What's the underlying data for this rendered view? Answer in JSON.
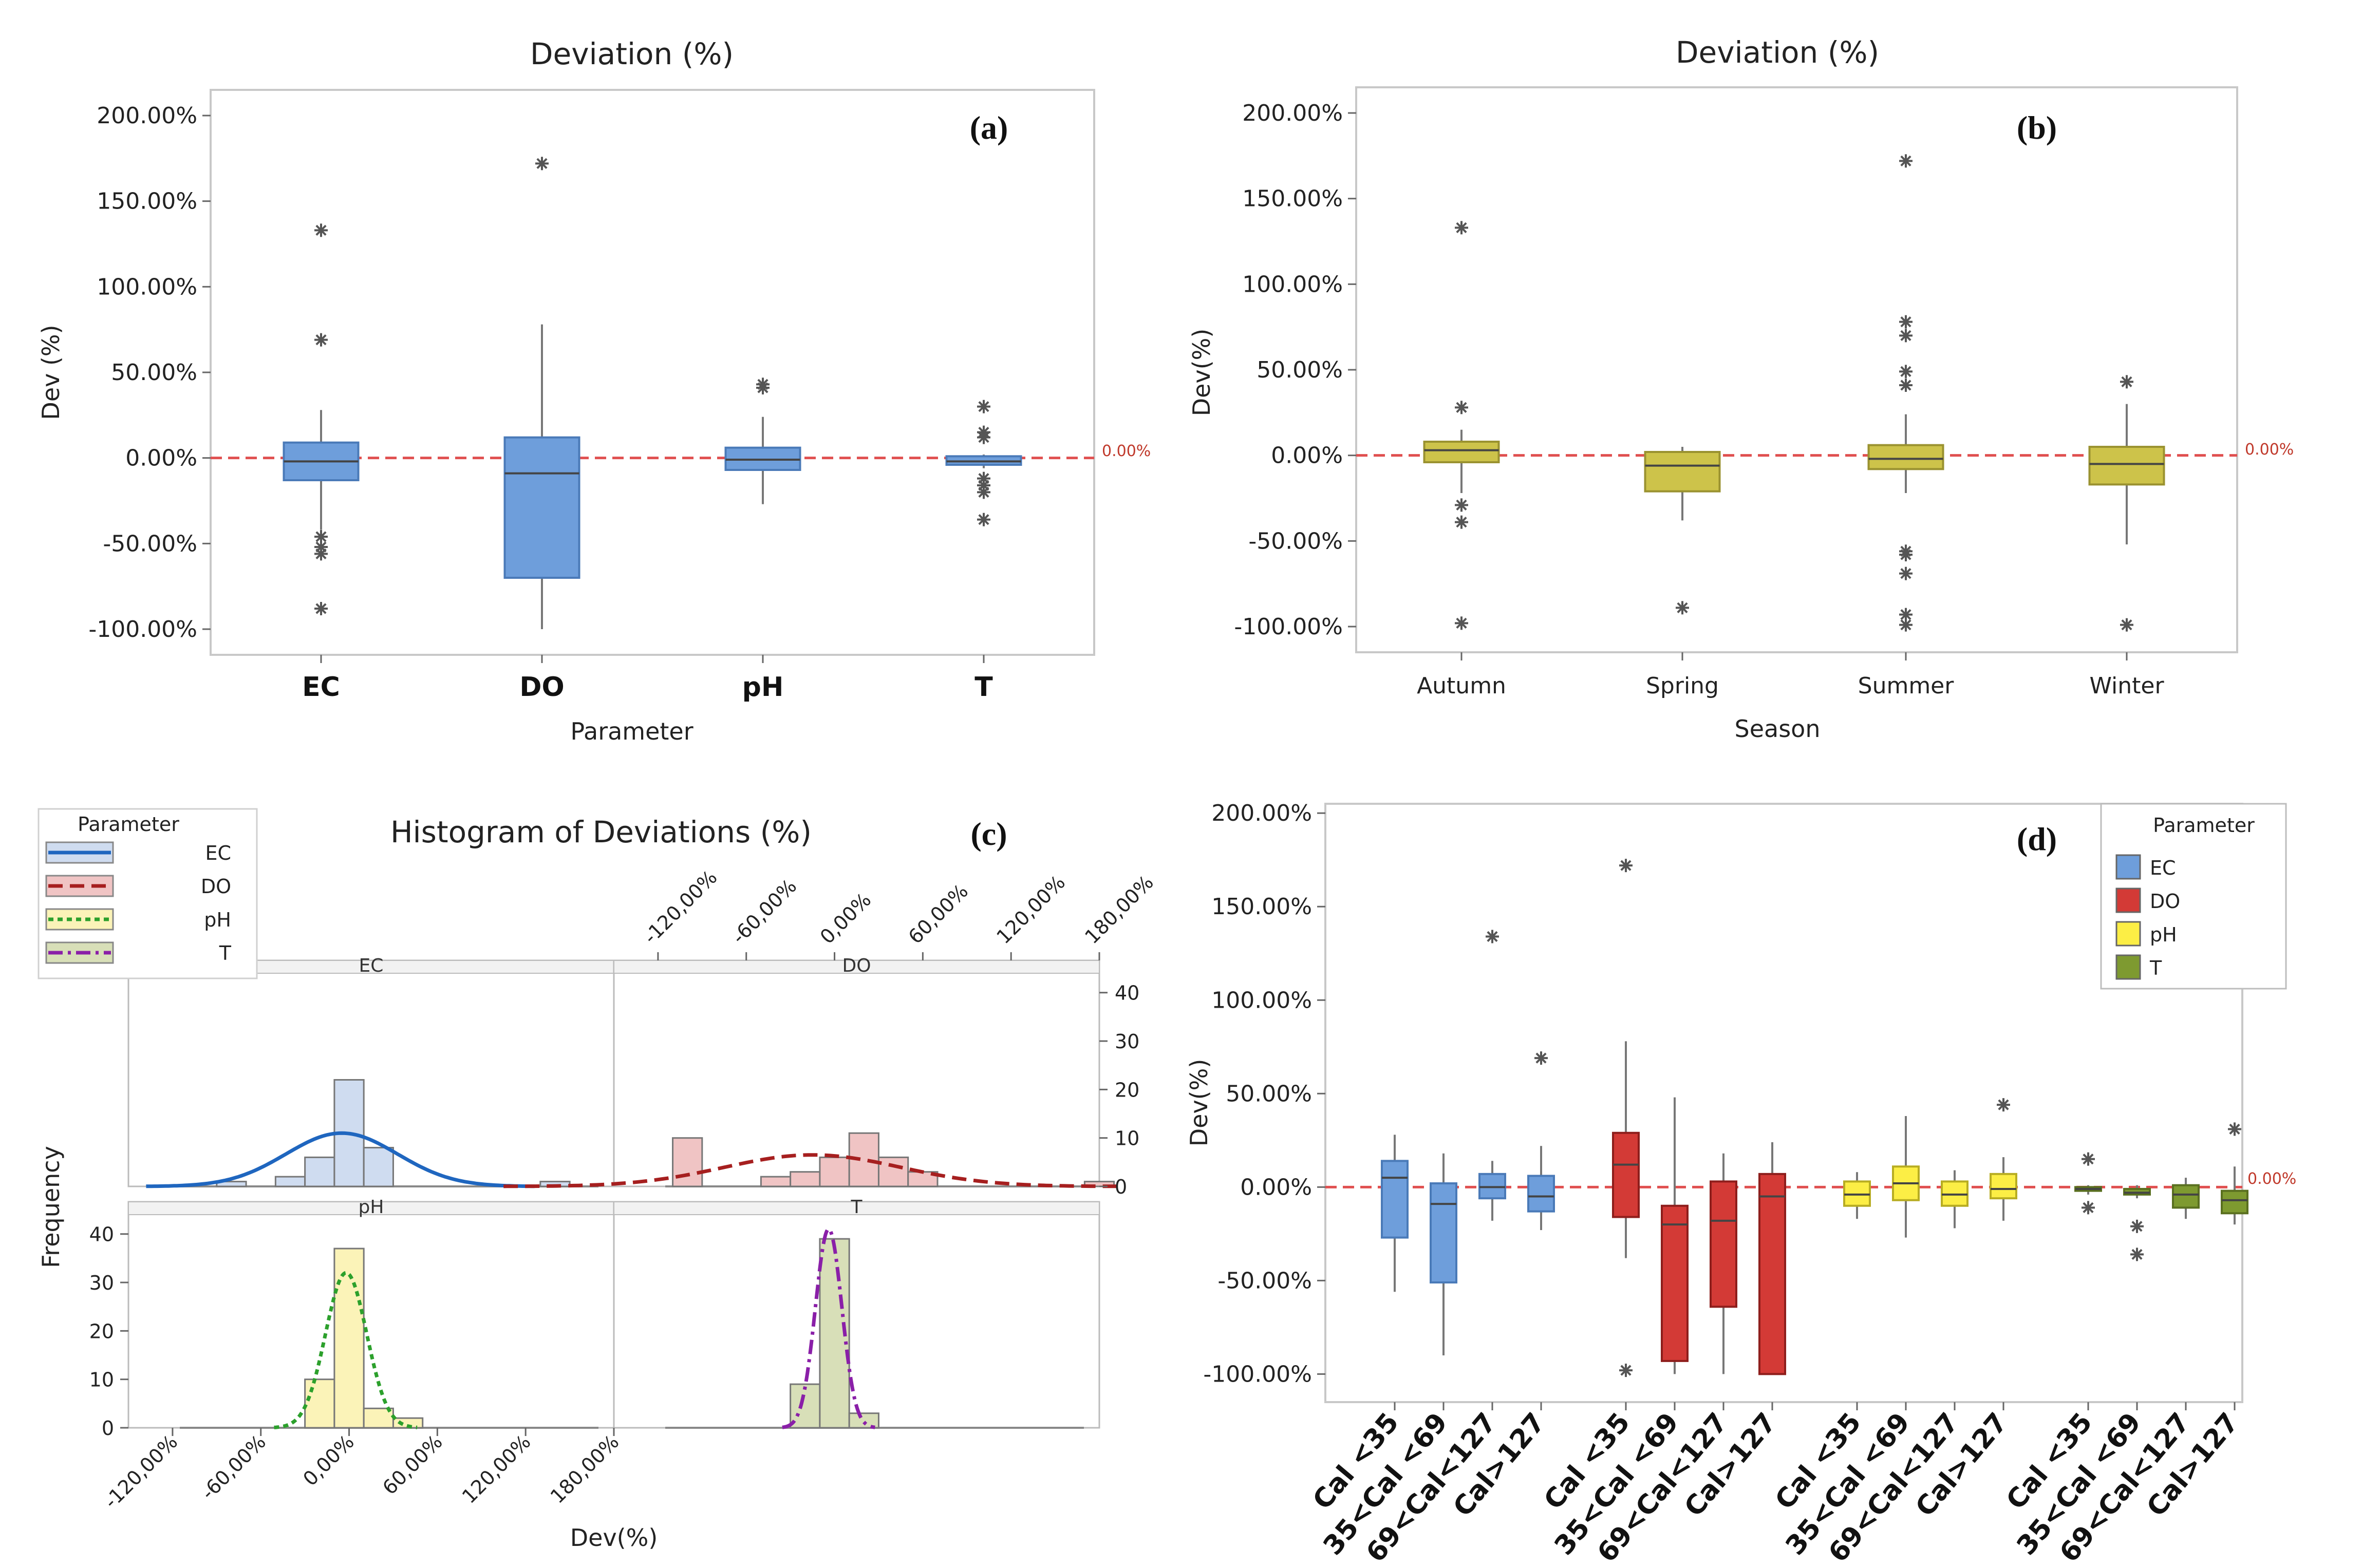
{
  "ref_line_label": "0.00%",
  "colors": {
    "blue": "#6e9edb",
    "blue_dark": "#1f66bf",
    "red": "#d33a36",
    "red_dark": "#a61f1f",
    "yellow": "#fcee45",
    "green": "#7e9a30",
    "olive": "#cdc34a",
    "ref": "#e05050",
    "purple": "#8a1fa8",
    "green_dash": "#2ca02c"
  },
  "chart_data": [
    {
      "panel": "(a)",
      "type": "box",
      "title": "Deviation (%)",
      "xlabel": "Parameter",
      "ylabel": "Dev (%)",
      "ylim": [
        -115,
        215
      ],
      "yticks": [
        200,
        150,
        100,
        50,
        0,
        -50,
        -100
      ],
      "ytick_labels": [
        "200.00%",
        "150.00%",
        "100.00%",
        "50.00%",
        "0.00%",
        "-50.00%",
        "-100.00%"
      ],
      "categories": [
        "EC",
        "DO",
        "pH",
        "T"
      ],
      "boxes": [
        {
          "q1": -13,
          "median": -2,
          "q3": 9,
          "whislo": -42,
          "whishi": 28,
          "outliers": [
            133,
            69,
            -46,
            -52,
            -56,
            -88
          ]
        },
        {
          "q1": -70,
          "median": -9,
          "q3": 12,
          "whislo": -100,
          "whishi": 78,
          "outliers": [
            172
          ]
        },
        {
          "q1": -7,
          "median": -1,
          "q3": 6,
          "whislo": -27,
          "whishi": 24,
          "outliers": [
            43,
            41
          ]
        },
        {
          "q1": -4,
          "median": -2,
          "q3": 1,
          "whislo": -6,
          "whishi": 2,
          "outliers": [
            30,
            15,
            12,
            -12,
            -16,
            -20,
            -36
          ]
        }
      ]
    },
    {
      "panel": "(b)",
      "type": "box",
      "title": "Deviation (%)",
      "xlabel": "Season",
      "ylabel": "Dev(%)",
      "ylim": [
        -115,
        215
      ],
      "yticks": [
        200,
        150,
        100,
        50,
        0,
        -50,
        -100
      ],
      "ytick_labels": [
        "200.00%",
        "150.00%",
        "100.00%",
        "50.00%",
        "0.00%",
        "-50.00%",
        "-100.00%"
      ],
      "categories": [
        "Autumn",
        "Spring",
        "Summer",
        "Winter"
      ],
      "boxes": [
        {
          "q1": -4,
          "median": 3,
          "q3": 8,
          "whislo": -22,
          "whishi": 15,
          "outliers": [
            133,
            28,
            -29,
            -39,
            -98
          ]
        },
        {
          "q1": -21,
          "median": -6,
          "q3": 2,
          "whislo": -38,
          "whishi": 5,
          "outliers": [
            -89
          ]
        },
        {
          "q1": -8,
          "median": -2,
          "q3": 6,
          "whislo": -22,
          "whishi": 24,
          "outliers": [
            172,
            78,
            70,
            49,
            41,
            -56,
            -58,
            -69,
            -93,
            -99
          ]
        },
        {
          "q1": -17,
          "median": -5,
          "q3": 5,
          "whislo": -52,
          "whishi": 30,
          "outliers": [
            43,
            -99
          ]
        }
      ]
    },
    {
      "panel": "(c)",
      "type": "histogram",
      "title": "Histogram of Deviations (%)",
      "xlabel": "Dev(%)",
      "ylabel": "Frequency",
      "xlim": [
        -150,
        180
      ],
      "ylim": [
        0,
        44
      ],
      "xticks": [
        -120,
        -60,
        0,
        60,
        120,
        180
      ],
      "xtick_labels": [
        "-120,00%",
        "-60,00%",
        "0,00%",
        "60,00%",
        "120,00%",
        "180,00%"
      ],
      "yticks": [
        0,
        10,
        20,
        30,
        40
      ],
      "ytick_labels": [
        "0",
        "10",
        "20",
        "30",
        "40"
      ],
      "bin_width": 20,
      "legend_title": "Parameter",
      "legend": [
        "EC",
        "DO",
        "pH",
        "T"
      ],
      "facets": [
        {
          "name": "EC",
          "bins": [
            [
              -90,
              1
            ],
            [
              -50,
              2
            ],
            [
              -30,
              6
            ],
            [
              -10,
              22
            ],
            [
              10,
              8
            ],
            [
              130,
              1
            ]
          ],
          "curve": {
            "mean": -5,
            "sd": 38,
            "peak": 11
          }
        },
        {
          "name": "DO",
          "bins": [
            [
              -110,
              10
            ],
            [
              -50,
              2
            ],
            [
              -30,
              3
            ],
            [
              -10,
              6
            ],
            [
              10,
              11
            ],
            [
              30,
              6
            ],
            [
              50,
              3
            ],
            [
              170,
              1
            ]
          ],
          "curve": {
            "mean": -15,
            "sd": 60,
            "peak": 6.5
          }
        },
        {
          "name": "pH",
          "bins": [
            [
              -30,
              10
            ],
            [
              -10,
              37
            ],
            [
              10,
              4
            ],
            [
              30,
              2
            ]
          ],
          "curve": {
            "mean": -2,
            "sd": 14,
            "peak": 32
          }
        },
        {
          "name": "T",
          "bins": [
            [
              -30,
              9
            ],
            [
              -10,
              39
            ],
            [
              10,
              3
            ]
          ],
          "curve": {
            "mean": -4,
            "sd": 9,
            "peak": 41
          }
        }
      ]
    },
    {
      "panel": "(d)",
      "type": "box",
      "ylabel": "Dev(%)",
      "ylim": [
        -115,
        205
      ],
      "yticks": [
        200,
        150,
        100,
        50,
        0,
        -50,
        -100
      ],
      "ytick_labels": [
        "200.00%",
        "150.00%",
        "100.00%",
        "50.00%",
        "0.00%",
        "-50.00%",
        "-100.00%"
      ],
      "categories": [
        "Cal <35",
        "35<Cal <69",
        "69<Cal<127",
        "Cal>127",
        "Cal <35",
        "35<Cal <69",
        "69<Cal<127",
        "Cal>127",
        "Cal <35",
        "35<Cal <69",
        "69<Cal<127",
        "Cal>127",
        "Cal <35",
        "35<Cal <69",
        "69<Cal<127",
        "Cal>127"
      ],
      "legend_title": "Parameter",
      "legend": [
        "EC",
        "DO",
        "pH",
        "T"
      ],
      "groups": [
        "EC",
        "EC",
        "EC",
        "EC",
        "DO",
        "DO",
        "DO",
        "DO",
        "pH",
        "pH",
        "pH",
        "pH",
        "T",
        "T",
        "T",
        "T"
      ],
      "boxes": [
        {
          "q1": -27,
          "median": 5,
          "q3": 14,
          "whislo": -56,
          "whishi": 28,
          "outliers": []
        },
        {
          "q1": -51,
          "median": -9,
          "q3": 2,
          "whislo": -90,
          "whishi": 18,
          "outliers": []
        },
        {
          "q1": -6,
          "median": 0,
          "q3": 7,
          "whislo": -18,
          "whishi": 14,
          "outliers": [
            134
          ]
        },
        {
          "q1": -13,
          "median": -5,
          "q3": 6,
          "whislo": -23,
          "whishi": 22,
          "outliers": [
            69
          ]
        },
        {
          "q1": -16,
          "median": 12,
          "q3": 29,
          "whislo": -38,
          "whishi": 78,
          "outliers": [
            172,
            -98
          ]
        },
        {
          "q1": -93,
          "median": -20,
          "q3": -10,
          "whislo": -100,
          "whishi": 48,
          "outliers": []
        },
        {
          "q1": -64,
          "median": -18,
          "q3": 3,
          "whislo": -100,
          "whishi": 18,
          "outliers": []
        },
        {
          "q1": -100,
          "median": -5,
          "q3": 7,
          "whislo": -100,
          "whishi": 24,
          "outliers": []
        },
        {
          "q1": -10,
          "median": -4,
          "q3": 3,
          "whislo": -17,
          "whishi": 8,
          "outliers": []
        },
        {
          "q1": -7,
          "median": 2,
          "q3": 11,
          "whislo": -27,
          "whishi": 38,
          "outliers": []
        },
        {
          "q1": -10,
          "median": -4,
          "q3": 3,
          "whislo": -22,
          "whishi": 9,
          "outliers": []
        },
        {
          "q1": -6,
          "median": -1,
          "q3": 7,
          "whislo": -18,
          "whishi": 16,
          "outliers": [
            44
          ]
        },
        {
          "q1": -2,
          "median": -1,
          "q3": 0,
          "whislo": -4,
          "whishi": 1,
          "outliers": [
            15,
            -11
          ]
        },
        {
          "q1": -4,
          "median": -3,
          "q3": -1,
          "whislo": -6,
          "whishi": 1,
          "outliers": [
            -21,
            -36
          ]
        },
        {
          "q1": -11,
          "median": -4,
          "q3": 1,
          "whislo": -17,
          "whishi": 5,
          "outliers": []
        },
        {
          "q1": -14,
          "median": -7,
          "q3": -2,
          "whislo": -20,
          "whishi": 11,
          "outliers": [
            31
          ]
        }
      ]
    }
  ]
}
